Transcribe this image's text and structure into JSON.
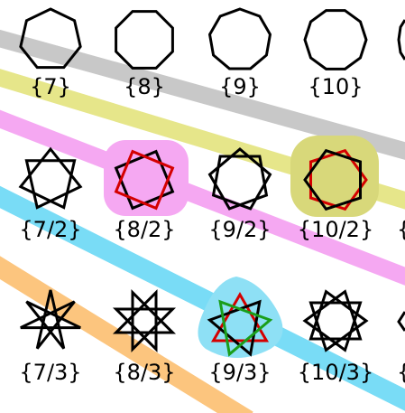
{
  "colors": {
    "background": "#ffffff",
    "stroke": "#000000",
    "band_gray": "#c8c8c8",
    "band_olive": "#e6e68a",
    "band_pink": "#f5a8f2",
    "band_cyan": "#79dcf6",
    "band_orange": "#fcc57e",
    "blob_pink": "#f5a8f2",
    "blob_olive": "#d8d87a",
    "blob_cyan": "#8ee0f5",
    "accent_red": "#d40000",
    "accent_green": "#1a9e1a"
  },
  "rows": [
    {
      "labels": [
        "{7}",
        "{8}",
        "{9}",
        "{10}"
      ]
    },
    {
      "labels": [
        "{7/2}",
        "{8/2}",
        "{9/2}",
        "{10/2}",
        "{"
      ]
    },
    {
      "labels": [
        "{7/3}",
        "{8/3}",
        "{9/3}",
        "{10/3}",
        "{"
      ]
    }
  ],
  "figures": [
    {
      "name": "heptagon-7",
      "n": 7,
      "k": 1
    },
    {
      "name": "octagon-8",
      "n": 8,
      "k": 1
    },
    {
      "name": "nonagon-9",
      "n": 9,
      "k": 1
    },
    {
      "name": "decagon-10",
      "n": 10,
      "k": 1
    },
    {
      "name": "star-7-2",
      "n": 7,
      "k": 2
    },
    {
      "name": "compound-8-2",
      "n": 8,
      "k": 2,
      "compound": true,
      "highlight": "pink"
    },
    {
      "name": "star-9-2",
      "n": 9,
      "k": 2
    },
    {
      "name": "compound-10-2",
      "n": 10,
      "k": 2,
      "compound": true,
      "highlight": "olive"
    },
    {
      "name": "star-7-3",
      "n": 7,
      "k": 3
    },
    {
      "name": "star-8-3",
      "n": 8,
      "k": 3
    },
    {
      "name": "compound-9-3",
      "n": 9,
      "k": 3,
      "compound": true,
      "highlight": "cyan"
    },
    {
      "name": "star-10-3",
      "n": 10,
      "k": 3
    }
  ]
}
